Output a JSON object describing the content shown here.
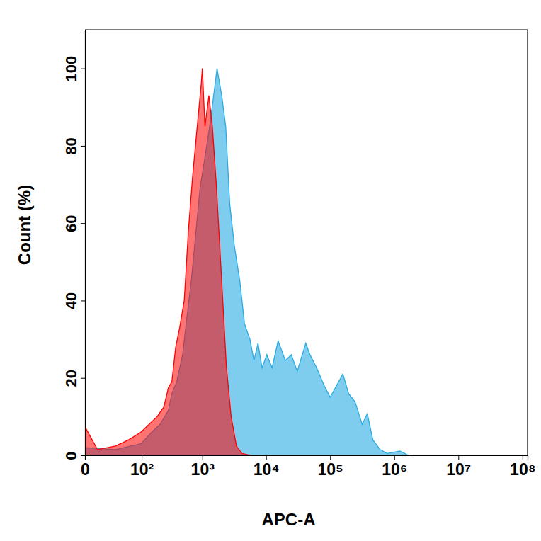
{
  "chart_data": {
    "type": "area",
    "x_label": "APC-A",
    "y_label": "Count (%)",
    "log": "x",
    "grid": false,
    "xlim": [
      0,
      120000000
    ],
    "xticks": [
      0,
      {
        "value": 100,
        "label": "10²"
      },
      {
        "value": 1000,
        "label": "10³"
      },
      {
        "value": 10000,
        "label": "10⁴"
      },
      {
        "value": 100000,
        "label": "10⁵"
      },
      {
        "value": 1000000,
        "label": "10⁶"
      },
      {
        "value": 10000000,
        "label": "10⁷"
      },
      {
        "value": 100000000,
        "label": "10⁸"
      }
    ],
    "ylim": [
      0,
      110
    ],
    "yticks": [
      0,
      20,
      40,
      60,
      80,
      100
    ],
    "series": [
      {
        "color": "#29abe2",
        "x": [
          0,
          30,
          97,
          150,
          207,
          285,
          325,
          390,
          485,
          563,
          667,
          795,
          920,
          1075,
          1305,
          1510,
          1705,
          2020,
          2335,
          2700,
          3200,
          3890,
          4600,
          5590,
          6470,
          7480,
          8650,
          10280,
          12400,
          15400,
          20000,
          24800,
          30700,
          41700,
          48500,
          61700,
          80700,
          100000,
          158000,
          194000,
          245000,
          316000,
          380000,
          464000,
          600000,
          774000,
          1230000,
          1660000
        ],
        "values": [
          2,
          1.5,
          3,
          6,
          8,
          11.6,
          16,
          19,
          26,
          35,
          45,
          58,
          69,
          76,
          85,
          93,
          100,
          93,
          85,
          65,
          54,
          45,
          34,
          30,
          24.5,
          29,
          22.6,
          26,
          22.6,
          29.6,
          24.5,
          26,
          21.7,
          29,
          26,
          22.6,
          18,
          15,
          21,
          16,
          13.8,
          8,
          10.7,
          4,
          1.5,
          0.5,
          1.1,
          0
        ]
      },
      {
        "color": "#ff0000",
        "x": [
          0,
          8.5,
          30,
          57,
          97,
          135,
          185,
          240,
          285,
          325,
          375,
          435,
          515,
          600,
          700,
          830,
          960,
          1000,
          1100,
          1270,
          1440,
          1660,
          2020,
          2390,
          2840,
          3440,
          4180,
          5600
        ],
        "values": [
          7.4,
          1.5,
          2.4,
          4,
          6,
          8,
          10,
          12.5,
          17.5,
          19,
          28,
          33,
          40,
          58,
          72,
          85,
          96,
          100,
          85,
          93,
          85,
          70,
          45,
          23,
          10,
          2.4,
          0.5,
          0
        ]
      }
    ]
  }
}
